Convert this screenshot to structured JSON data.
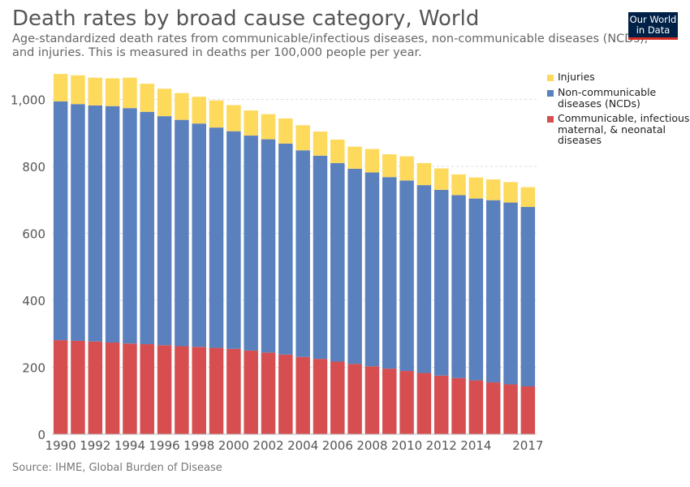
{
  "title": "Death rates by broad cause category, World",
  "subtitle": "Age-standardized death rates from communicable/infectious diseases, non-communicable diseases (NCDs), and injuries. This is measured in deaths per 100,000 people per year.",
  "logo": {
    "line1": "Our World",
    "line2": "in Data"
  },
  "source": "Source: IHME, Global Burden of Disease",
  "colors": {
    "communicable": "#d64e50",
    "ncd": "#5a80bd",
    "injuries": "#fdd95c",
    "grid": "#dddddd",
    "axis_text": "#555555",
    "logo_bg": "#002147",
    "logo_accent": "#d42b21"
  },
  "legend": [
    {
      "label": "Injuries",
      "color": "#fdd95c"
    },
    {
      "label": "Non-communicable diseases (NCDs)",
      "color": "#5a80bd"
    },
    {
      "label": "Communicable, infectious, maternal, & neonatal diseases",
      "color": "#d64e50"
    }
  ],
  "chart_data": {
    "type": "bar",
    "stacked": true,
    "categories": [
      1990,
      1991,
      1992,
      1993,
      1994,
      1995,
      1996,
      1997,
      1998,
      1999,
      2000,
      2001,
      2002,
      2003,
      2004,
      2005,
      2006,
      2007,
      2008,
      2009,
      2010,
      2011,
      2012,
      2013,
      2014,
      2015,
      2016,
      2017
    ],
    "x_tick_labels": [
      "1990",
      "1992",
      "1994",
      "1996",
      "1998",
      "2000",
      "2002",
      "2004",
      "2006",
      "2008",
      "2010",
      "2012",
      "2014",
      "2017"
    ],
    "y_ticks": [
      0,
      200,
      400,
      600,
      800,
      1000
    ],
    "y_tick_labels": [
      "0",
      "200",
      "400",
      "600",
      "800",
      "1,000"
    ],
    "ylim": [
      0,
      1100
    ],
    "grid": "horizontal dashed",
    "legend_position": "right",
    "series": [
      {
        "name": "Communicable, infectious, maternal, & neonatal diseases",
        "values": [
          281,
          279,
          277,
          274,
          271,
          269,
          266,
          263,
          261,
          258,
          255,
          250,
          244,
          238,
          231,
          225,
          217,
          210,
          203,
          196,
          189,
          183,
          175,
          168,
          161,
          155,
          149,
          143
        ]
      },
      {
        "name": "Non-communicable diseases (NCDs)",
        "values": [
          713,
          707,
          705,
          706,
          703,
          694,
          684,
          676,
          667,
          658,
          650,
          642,
          637,
          630,
          617,
          607,
          593,
          583,
          579,
          572,
          569,
          561,
          555,
          546,
          543,
          544,
          543,
          536
        ]
      },
      {
        "name": "Injuries",
        "values": [
          82,
          86,
          83,
          83,
          91,
          84,
          82,
          80,
          80,
          81,
          78,
          75,
          75,
          75,
          75,
          72,
          70,
          66,
          70,
          68,
          72,
          66,
          64,
          62,
          63,
          62,
          61,
          59
        ]
      }
    ]
  }
}
